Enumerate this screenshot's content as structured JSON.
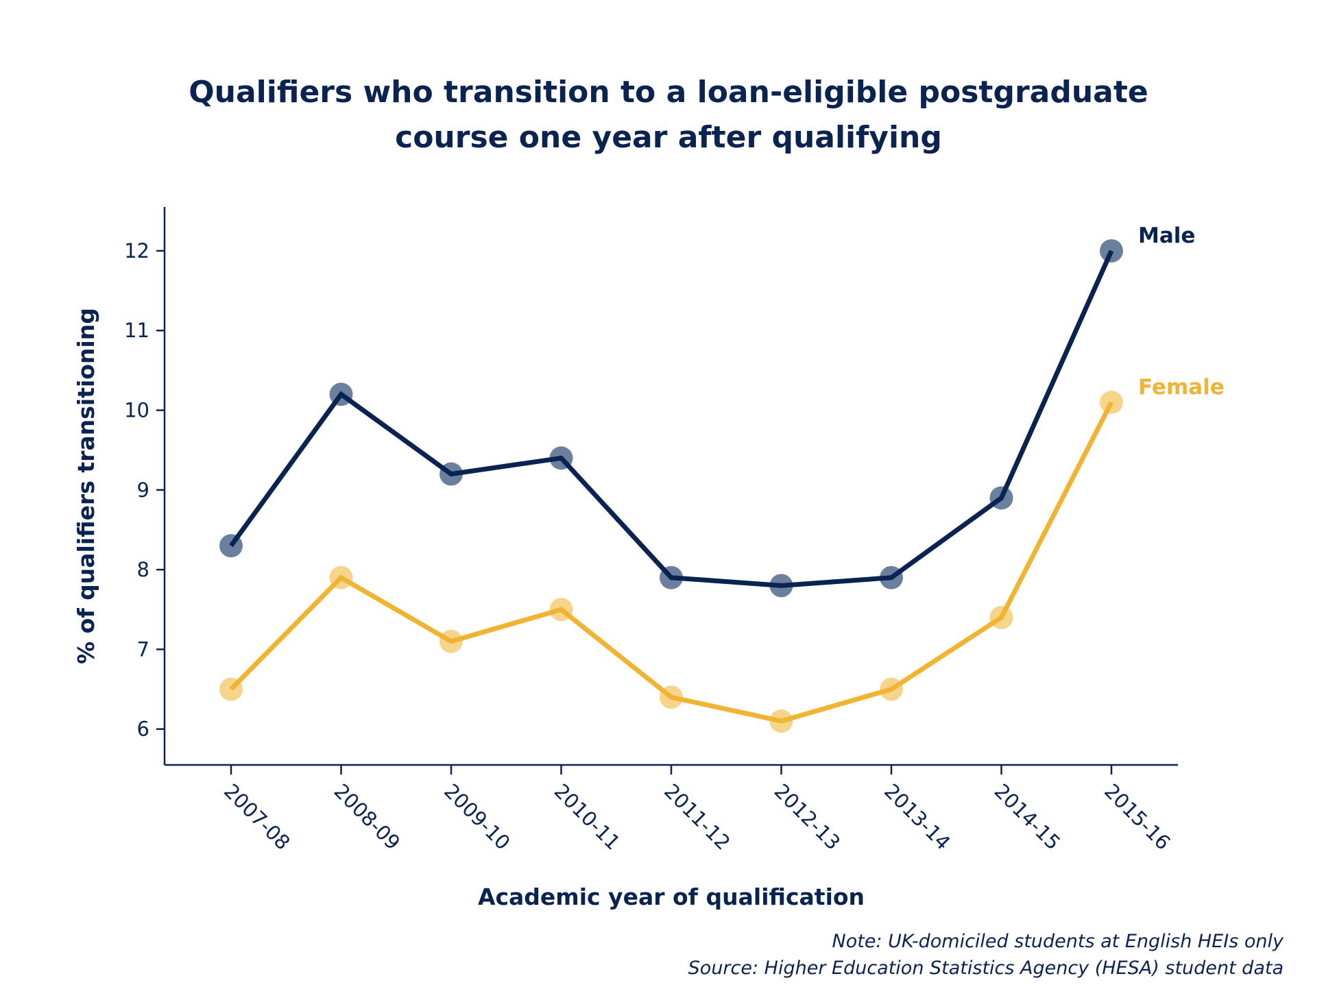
{
  "chart_data": {
    "type": "line",
    "title_lines": [
      "Qualifiers who transition to a loan-eligible postgraduate",
      "course one year after qualifying"
    ],
    "xlabel": "Academic year of qualification",
    "ylabel": "% of qualifiers transitioning",
    "categories": [
      "2007-08",
      "2008-09",
      "2009-10",
      "2010-11",
      "2011-12",
      "2012-13",
      "2013-14",
      "2014-15",
      "2015-16"
    ],
    "y_ticks": [
      "6",
      "7",
      "8",
      "9",
      "10",
      "11",
      "12"
    ],
    "ylim": [
      5.55,
      12.55
    ],
    "grid": false,
    "legend": "direct labels at end of lines",
    "series": [
      {
        "name": "Male",
        "color": "#0b2350",
        "marker_color": "#6b7f9e",
        "values": [
          8.3,
          10.2,
          9.2,
          9.4,
          7.9,
          7.8,
          7.9,
          8.9,
          12.0
        ]
      },
      {
        "name": "Female",
        "color": "#f0b432",
        "marker_color": "#f6d48a",
        "values": [
          6.5,
          7.9,
          7.1,
          7.5,
          6.4,
          6.1,
          6.5,
          7.4,
          10.1
        ]
      }
    ]
  },
  "notes": {
    "note": "Note: UK-domiciled students at English HEIs only",
    "source": "Source: Higher Education Statistics Agency (HESA) student data"
  }
}
